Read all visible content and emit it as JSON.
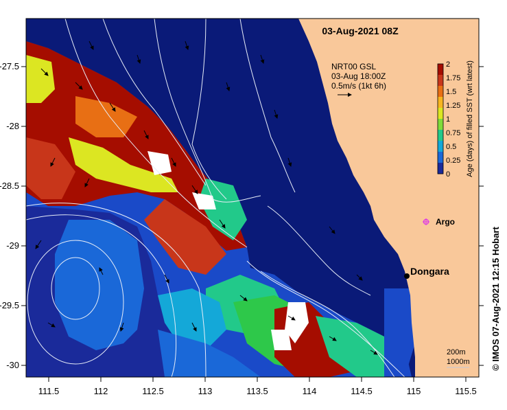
{
  "map": {
    "title": "03-Aug-2021 08Z",
    "legend_current": {
      "line1": "NRT00 GSL",
      "line2": "03-Aug 18:00Z",
      "line3": "0.5m/s (1kt 6h)"
    },
    "colorbar": {
      "label": "Age (days) of filled SST (wrt latest)",
      "ticks": [
        "2",
        "1.75",
        "1.5",
        "1.25",
        "1",
        "0.75",
        "0.5",
        "0.25",
        "0"
      ],
      "colors": [
        "#a50d00",
        "#c8361a",
        "#e86f14",
        "#f7b520",
        "#dce622",
        "#7fdc3a",
        "#22c98a",
        "#14a8d8",
        "#1a68d8",
        "#1a2a9a"
      ]
    },
    "places": [
      {
        "name": "Argo",
        "marker": "argo-star-icon",
        "color": "#e040e0"
      },
      {
        "name": "Dongara",
        "marker": "town-dot-icon",
        "color": "#000000"
      }
    ],
    "depth_legend": {
      "line1": "200m",
      "line2": "1000m"
    },
    "credit": "© IMOS 07-Aug-2021 12:15 Hobart",
    "x_ticks": [
      "111.5",
      "112",
      "112.5",
      "113",
      "113.5",
      "114",
      "114.5",
      "115",
      "115.5"
    ],
    "y_ticks": [
      "-27.5",
      "-28",
      "-28.5",
      "-29",
      "-29.5",
      "-30"
    ],
    "colors": {
      "ocean": "#0a1a78",
      "land": "#f9c89a",
      "contour": "#e8eef8"
    }
  }
}
